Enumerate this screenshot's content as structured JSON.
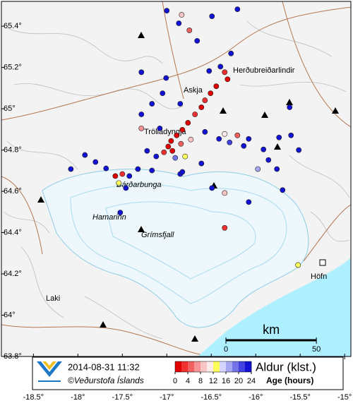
{
  "chart_data": {
    "type": "map",
    "xlim": [
      -18.86,
      -14.93
    ],
    "ylim": [
      63.8,
      65.52
    ],
    "xticks": [
      {
        "value": -18.5,
        "label": "-18.5°"
      },
      {
        "value": -18,
        "label": "-18°"
      },
      {
        "value": -17.5,
        "label": "-17.5°"
      },
      {
        "value": -17,
        "label": "-17°"
      },
      {
        "value": -16.5,
        "label": "-16.5°"
      },
      {
        "value": -16,
        "label": "-16°"
      },
      {
        "value": -15.5,
        "label": "-15.5°"
      },
      {
        "value": -15,
        "label": "-15°"
      }
    ],
    "yticks": [
      {
        "value": 63.8,
        "label": "63.8°"
      },
      {
        "value": 64,
        "label": "64°"
      },
      {
        "value": 64.2,
        "label": "64.2°"
      },
      {
        "value": 64.4,
        "label": "64.4°"
      },
      {
        "value": 64.6,
        "label": "64.6°"
      },
      {
        "value": 64.8,
        "label": "64.8°"
      },
      {
        "value": 65,
        "label": "65°"
      },
      {
        "value": 65.2,
        "label": "65.2°"
      },
      {
        "value": 65.4,
        "label": "65.4°"
      }
    ],
    "places": [
      "Herðubreiðarlindir",
      "Askja",
      "Trölladyngja",
      "Bárðarbunga",
      "Hamarinn",
      "Grímsfjall",
      "Höfn",
      "Laki"
    ],
    "timestamp": "2014-08-31 11:32",
    "credit": "©Veðurstofa Íslands",
    "colorbar": {
      "title": "Aldur (klst.)",
      "subtitle": "Age (hours)",
      "ticks": [
        0,
        4,
        8,
        12,
        16,
        20,
        24
      ],
      "colors": [
        "#e00000",
        "#f03030",
        "#f06060",
        "#f49494",
        "#f8c4c4",
        "#fdeaea",
        "#ffff5a",
        "#d4d4ff",
        "#a6a6f2",
        "#7474e8",
        "#4242e0",
        "#1212d2"
      ]
    },
    "scale_bar": {
      "label": "km",
      "ticks": [
        0,
        50
      ]
    },
    "quakes": {
      "lon": [
        -17.0,
        -16.833,
        -16.865,
        -16.492,
        -16.746,
        -16.206,
        -16.659,
        -16.278,
        -16.397,
        -16.349,
        -16.317,
        -16.444,
        -16.508,
        -16.571,
        -16.611,
        -16.683,
        -16.762,
        -16.825,
        -16.889,
        -16.952,
        -16.984,
        -16.937,
        -17.032,
        -16.841,
        -16.73,
        -16.794,
        -16.905,
        -17.119,
        -17.222,
        -17.079,
        -16.571,
        -16.413,
        -16.294,
        -16.135,
        -16.079,
        -15.913,
        -15.738,
        -15.857,
        -15.976,
        -15.762,
        -15.603,
        -15.516,
        -15.619,
        -16.206,
        -16.349,
        -17.286,
        -17.286,
        -17.167,
        -16.849,
        -17.048,
        -17.286,
        -17.008,
        -16.524,
        -17.921,
        -18.079,
        -17.802,
        -17.683,
        -17.579,
        -17.5,
        -17.421,
        -17.54,
        -17.46,
        -17.325,
        -17.167,
        -16.849,
        -16.492,
        -16.349,
        -16.079,
        -15.698,
        -17.524,
        -16.349,
        -15.524,
        -16.825,
        -16.611
      ],
      "lat": [
        65.475,
        65.455,
        65.414,
        65.448,
        65.38,
        65.482,
        65.329,
        65.268,
        65.204,
        65.177,
        65.143,
        65.109,
        65.075,
        65.041,
        65.007,
        64.973,
        64.932,
        64.898,
        64.871,
        64.844,
        64.817,
        64.796,
        64.789,
        64.83,
        64.851,
        64.769,
        64.762,
        64.769,
        64.796,
        64.905,
        64.888,
        64.854,
        64.837,
        64.82,
        64.854,
        64.803,
        64.861,
        64.752,
        64.708,
        64.708,
        64.871,
        64.8,
        65.007,
        64.871,
        64.878,
        64.905,
        64.973,
        65.024,
        65.024,
        65.075,
        65.177,
        65.149,
        65.183,
        64.776,
        64.708,
        64.742,
        64.711,
        64.674,
        64.684,
        64.674,
        64.64,
        64.616,
        64.708,
        64.701,
        64.684,
        64.616,
        64.592,
        64.548,
        64.606,
        64.497,
        64.423,
        64.243,
        64.694,
        64.735
      ],
      "age": [
        24,
        8,
        24,
        24,
        4,
        24,
        24,
        24,
        24,
        2,
        1,
        0,
        1,
        2,
        0,
        3,
        1,
        0,
        0,
        0,
        1,
        0,
        2,
        5,
        9,
        12,
        18,
        24,
        24,
        24,
        24,
        24,
        20,
        24,
        24,
        24,
        24,
        24,
        16,
        24,
        24,
        24,
        24,
        5,
        10,
        6,
        24,
        24,
        24,
        24,
        24,
        24,
        24,
        24,
        24,
        24,
        24,
        1,
        3,
        24,
        12,
        24,
        24,
        24,
        24,
        24,
        8,
        24,
        24,
        24,
        2,
        12,
        24,
        24
      ]
    }
  }
}
